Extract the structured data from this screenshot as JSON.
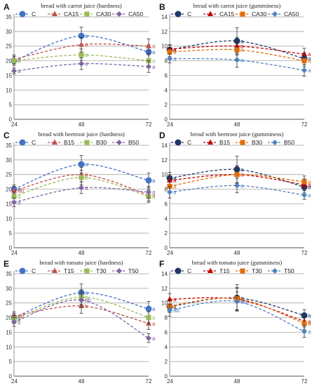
{
  "chart_data": [
    {
      "panel": "A",
      "type": "line",
      "title": "bread with carrot juice (hardness)",
      "x": [
        24,
        48,
        72
      ],
      "xticks": [
        "24",
        "48",
        "72"
      ],
      "ylim": [
        0,
        35
      ],
      "yticks": [
        0,
        5,
        10,
        15,
        20,
        25,
        30,
        35
      ],
      "grid": true,
      "legend": "top",
      "series": [
        {
          "name": "C",
          "color": "#4472c4",
          "marker": "circle",
          "values": [
            20.0,
            28.5,
            23.0
          ],
          "err": [
            1.5,
            3.0,
            2.5
          ],
          "labels": [
            "a",
            "a",
            "a"
          ]
        },
        {
          "name": "CA15",
          "color": "#c0504d",
          "marker": "triangle",
          "values": [
            20.5,
            25.5,
            25.0
          ],
          "err": [
            1.5,
            2.5,
            2.5
          ],
          "labels": [
            "a",
            "a",
            "a"
          ]
        },
        {
          "name": "CA30",
          "color": "#9bbb59",
          "marker": "square",
          "values": [
            20.0,
            22.0,
            20.0
          ],
          "err": [
            1.5,
            2.0,
            2.0
          ],
          "labels": [
            "a",
            "a",
            "a"
          ]
        },
        {
          "name": "CA50",
          "color": "#8064a2",
          "marker": "diamond",
          "values": [
            16.5,
            19.0,
            18.0
          ],
          "err": [
            1.0,
            2.0,
            2.0
          ],
          "labels": [
            "a",
            "a",
            "a"
          ]
        }
      ]
    },
    {
      "panel": "B",
      "type": "line",
      "title": "bread with carrot juice (gumminess)",
      "x": [
        24,
        48,
        72
      ],
      "xticks": [
        "24",
        "48",
        "72"
      ],
      "ylim": [
        0,
        14
      ],
      "yticks": [
        0,
        2,
        4,
        6,
        8,
        10,
        12,
        14
      ],
      "grid": true,
      "legend": "top",
      "series": [
        {
          "name": "C",
          "color": "#1f3864",
          "marker": "circle",
          "values": [
            9.5,
            10.7,
            8.3
          ],
          "err": [
            0.6,
            1.8,
            0.8
          ],
          "labels": [
            "a",
            "a",
            "a"
          ]
        },
        {
          "name": "CA15",
          "color": "#c00000",
          "marker": "triangle",
          "values": [
            9.6,
            10.0,
            8.9
          ],
          "err": [
            0.6,
            1.2,
            0.8
          ],
          "labels": [
            "a",
            "a",
            "a"
          ]
        },
        {
          "name": "CA30",
          "color": "#e36c09",
          "marker": "square",
          "values": [
            9.2,
            9.5,
            8.0
          ],
          "err": [
            0.6,
            1.2,
            0.8
          ],
          "labels": [
            "a",
            "a",
            "a"
          ]
        },
        {
          "name": "CA50",
          "color": "#4f81bd",
          "marker": "diamond",
          "values": [
            8.3,
            8.1,
            6.7
          ],
          "err": [
            0.6,
            1.0,
            0.8
          ],
          "labels": [
            "a",
            "a",
            "a"
          ]
        }
      ]
    },
    {
      "panel": "C",
      "type": "line",
      "title": "bread with beetroot juice (hardness)",
      "x": [
        24,
        48,
        72
      ],
      "xticks": [
        "24",
        "48",
        "72"
      ],
      "ylim": [
        0,
        35
      ],
      "yticks": [
        0,
        5,
        10,
        15,
        20,
        25,
        30,
        35
      ],
      "grid": true,
      "legend": "top",
      "series": [
        {
          "name": "C",
          "color": "#4472c4",
          "marker": "circle",
          "values": [
            20.0,
            28.5,
            23.0
          ],
          "err": [
            1.5,
            3.0,
            2.5
          ],
          "labels": [
            "a",
            "a",
            "a"
          ]
        },
        {
          "name": "B15",
          "color": "#c0504d",
          "marker": "triangle",
          "values": [
            19.5,
            25.0,
            18.0
          ],
          "err": [
            1.5,
            2.5,
            2.0
          ],
          "labels": [
            "ab",
            "a",
            "a"
          ]
        },
        {
          "name": "B30",
          "color": "#9bbb59",
          "marker": "square",
          "values": [
            17.5,
            24.0,
            17.5
          ],
          "err": [
            1.5,
            2.5,
            2.0
          ],
          "labels": [
            "a",
            "a",
            "a"
          ]
        },
        {
          "name": "B50",
          "color": "#8064a2",
          "marker": "diamond",
          "values": [
            15.5,
            20.5,
            19.0
          ],
          "err": [
            1.5,
            2.0,
            2.0
          ],
          "labels": [
            "a",
            "a",
            "a"
          ]
        }
      ]
    },
    {
      "panel": "D",
      "type": "line",
      "title": "bread with beetroot juice (gumminess)",
      "x": [
        24,
        48,
        72
      ],
      "xticks": [
        "24",
        "48",
        "72"
      ],
      "ylim": [
        0,
        14
      ],
      "yticks": [
        0,
        2,
        4,
        6,
        8,
        10,
        12,
        14
      ],
      "grid": true,
      "legend": "top",
      "series": [
        {
          "name": "C",
          "color": "#1f3864",
          "marker": "circle",
          "values": [
            9.5,
            10.7,
            8.3
          ],
          "err": [
            0.8,
            1.8,
            0.8
          ],
          "labels": [
            "a",
            "a",
            "a"
          ]
        },
        {
          "name": "B15",
          "color": "#c00000",
          "marker": "triangle",
          "values": [
            9.2,
            10.0,
            8.6
          ],
          "err": [
            0.8,
            1.2,
            0.8
          ],
          "labels": [
            "a",
            "a",
            "a"
          ]
        },
        {
          "name": "B30",
          "color": "#e36c09",
          "marker": "square",
          "values": [
            8.4,
            10.0,
            9.0
          ],
          "err": [
            0.8,
            1.2,
            0.8
          ],
          "labels": [
            "a",
            "a",
            "a"
          ]
        },
        {
          "name": "B50",
          "color": "#4f81bd",
          "marker": "diamond",
          "values": [
            7.6,
            8.5,
            7.2
          ],
          "err": [
            0.8,
            1.0,
            0.6
          ],
          "labels": [
            "a",
            "a",
            "a"
          ]
        }
      ]
    },
    {
      "panel": "E",
      "type": "line",
      "title": "bread with tomato juice (hardness)",
      "x": [
        24,
        48,
        72
      ],
      "xticks": [
        "24",
        "48",
        "72"
      ],
      "ylim": [
        0,
        35
      ],
      "yticks": [
        0,
        5,
        10,
        15,
        20,
        25,
        30,
        35
      ],
      "grid": true,
      "legend": "top",
      "series": [
        {
          "name": "C",
          "color": "#4472c4",
          "marker": "circle",
          "values": [
            20.0,
            28.5,
            23.0
          ],
          "err": [
            1.5,
            3.0,
            2.5
          ],
          "labels": [
            "a",
            "a",
            "a"
          ]
        },
        {
          "name": "T15",
          "color": "#c0504d",
          "marker": "triangle",
          "values": [
            20.5,
            24.0,
            18.0
          ],
          "err": [
            1.5,
            2.5,
            2.0
          ],
          "labels": [
            "ab",
            "b",
            "a"
          ]
        },
        {
          "name": "T30",
          "color": "#9bbb59",
          "marker": "square",
          "values": [
            19.5,
            27.0,
            20.0
          ],
          "err": [
            1.5,
            2.5,
            2.0
          ],
          "labels": [
            "a",
            "a",
            "a"
          ]
        },
        {
          "name": "T50",
          "color": "#8064a2",
          "marker": "diamond",
          "values": [
            18.5,
            26.0,
            13.0
          ],
          "err": [
            1.5,
            2.5,
            1.5
          ],
          "labels": [
            "b",
            "ab",
            "a"
          ]
        }
      ]
    },
    {
      "panel": "F",
      "type": "line",
      "title": "bread with tomato juice (gumminess)",
      "x": [
        24,
        48,
        72
      ],
      "xticks": [
        "24",
        "48",
        "72"
      ],
      "ylim": [
        0,
        14
      ],
      "yticks": [
        0,
        2,
        4,
        6,
        8,
        10,
        12,
        14
      ],
      "grid": true,
      "legend": "top",
      "series": [
        {
          "name": "C",
          "color": "#1f3864",
          "marker": "circle",
          "values": [
            9.5,
            10.7,
            8.3
          ],
          "err": [
            0.8,
            1.8,
            0.8
          ],
          "labels": [
            "a",
            "a",
            "a"
          ]
        },
        {
          "name": "T15",
          "color": "#c00000",
          "marker": "triangle",
          "values": [
            10.5,
            10.5,
            7.5
          ],
          "err": [
            0.8,
            1.5,
            0.8
          ],
          "labels": [
            "a",
            "a",
            "a"
          ]
        },
        {
          "name": "T30",
          "color": "#e36c09",
          "marker": "square",
          "values": [
            9.6,
            10.6,
            7.2
          ],
          "err": [
            0.8,
            1.5,
            0.8
          ],
          "labels": [
            "a",
            "a",
            "a"
          ]
        },
        {
          "name": "T50",
          "color": "#4f81bd",
          "marker": "diamond",
          "values": [
            9.0,
            10.2,
            6.1
          ],
          "err": [
            0.8,
            1.3,
            0.8
          ],
          "labels": [
            "ab",
            "ab",
            "a"
          ]
        }
      ]
    }
  ]
}
